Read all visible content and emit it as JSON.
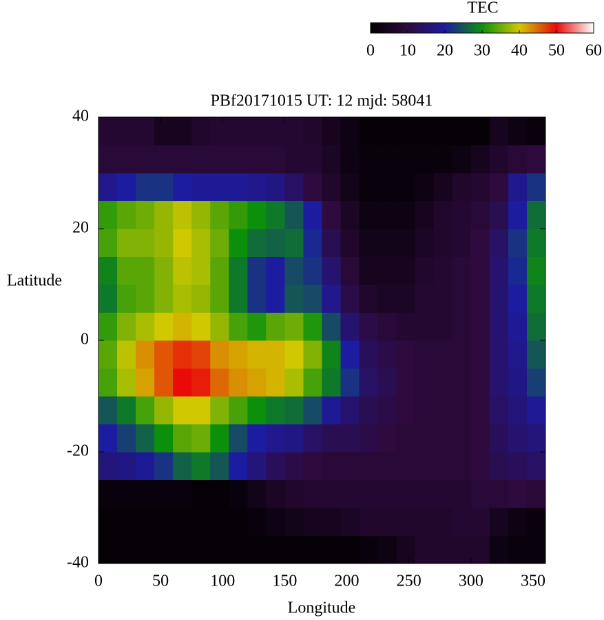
{
  "chart_data": {
    "type": "heatmap",
    "title": "PBf20171015  UT: 12  mjd: 58041",
    "xlabel": "Longitude",
    "ylabel": "Latitude",
    "colorbar_title": "TEC",
    "xlim": [
      0,
      360
    ],
    "xticks": [
      0,
      50,
      100,
      150,
      200,
      250,
      300,
      350
    ],
    "ylim": [
      -40,
      40
    ],
    "yticks": [
      -40,
      -20,
      0,
      20,
      40
    ],
    "zlim": [
      0,
      60
    ],
    "zticks": [
      0,
      10,
      20,
      30,
      40,
      50,
      60
    ],
    "colormap": [
      "#000000",
      "#2e0a3e",
      "#1c1ca0",
      "#0c900c",
      "#d0c800",
      "#ea0a0a",
      "#ffffff"
    ],
    "x": [
      7.5,
      22.5,
      37.5,
      52.5,
      67.5,
      82.5,
      97.5,
      112.5,
      127.5,
      142.5,
      157.5,
      172.5,
      187.5,
      202.5,
      217.5,
      232.5,
      247.5,
      262.5,
      277.5,
      292.5,
      307.5,
      322.5,
      337.5,
      352.5
    ],
    "y": [
      -37.5,
      -32.5,
      -27.5,
      -22.5,
      -17.5,
      -12.5,
      -7.5,
      -2.5,
      2.5,
      7.5,
      12.5,
      17.5,
      22.5,
      27.5,
      32.5,
      37.5
    ],
    "z": [
      [
        1,
        1,
        1,
        1,
        1,
        1,
        1,
        1,
        1,
        1,
        1,
        1,
        1,
        1,
        2,
        3,
        5,
        7,
        7,
        7,
        7,
        3,
        2,
        2
      ],
      [
        1,
        1,
        1,
        1,
        1,
        1,
        1,
        1,
        2,
        3,
        4,
        5,
        5,
        6,
        7,
        7,
        7,
        7,
        7,
        8,
        8,
        5,
        3,
        2
      ],
      [
        2,
        2,
        2,
        2,
        2,
        1,
        1,
        2,
        4,
        6,
        7,
        8,
        8,
        8,
        8,
        8,
        8,
        8,
        8,
        8,
        9,
        9,
        10,
        9
      ],
      [
        16,
        17,
        19,
        22,
        26,
        28,
        25,
        20,
        16,
        13,
        11,
        10,
        9,
        9,
        9,
        9,
        9,
        9,
        9,
        9,
        10,
        12,
        13,
        14
      ],
      [
        20,
        23,
        26,
        30,
        34,
        35,
        30,
        24,
        20,
        18,
        17,
        14,
        12,
        12,
        11,
        10,
        9,
        9,
        9,
        9,
        10,
        13,
        15,
        16
      ],
      [
        25,
        28,
        33,
        37,
        40,
        40,
        36,
        33,
        30,
        28,
        27,
        24,
        19,
        15,
        12,
        11,
        10,
        9,
        9,
        9,
        10,
        14,
        16,
        19
      ],
      [
        33,
        38,
        42,
        46,
        50,
        49,
        45,
        43,
        42,
        41,
        38,
        33,
        28,
        22,
        14,
        12,
        10,
        9,
        9,
        9,
        10,
        15,
        17,
        23
      ],
      [
        34,
        39,
        43,
        46,
        48,
        47,
        43,
        42,
        41,
        41,
        40,
        36,
        29,
        20,
        13,
        11,
        10,
        9,
        9,
        9,
        10,
        15,
        18,
        25
      ],
      [
        32,
        36,
        38,
        40,
        41,
        40,
        37,
        33,
        31,
        34,
        35,
        31,
        24,
        15,
        11,
        9,
        8,
        8,
        8,
        9,
        10,
        15,
        19,
        27
      ],
      [
        28,
        33,
        34,
        36,
        38,
        37,
        34,
        28,
        22,
        20,
        25,
        24,
        18,
        11,
        7,
        6,
        6,
        8,
        8,
        9,
        10,
        15,
        20,
        28
      ],
      [
        29,
        34,
        34,
        36,
        39,
        38,
        34,
        28,
        22,
        20,
        24,
        22,
        15,
        9,
        5,
        5,
        5,
        7,
        8,
        9,
        10,
        15,
        21,
        29
      ],
      [
        33,
        36,
        36,
        37,
        40,
        38,
        35,
        30,
        27,
        26,
        27,
        21,
        12,
        7,
        4,
        4,
        4,
        6,
        7,
        8,
        10,
        14,
        22,
        28
      ],
      [
        32,
        34,
        35,
        37,
        39,
        37,
        34,
        32,
        30,
        28,
        25,
        20,
        10,
        6,
        3,
        3,
        3,
        5,
        7,
        8,
        9,
        12,
        20,
        27
      ],
      [
        18,
        20,
        22,
        22,
        20,
        19,
        19,
        19,
        18,
        17,
        14,
        10,
        7,
        4,
        2,
        2,
        2,
        3,
        5,
        7,
        8,
        10,
        18,
        22
      ],
      [
        9,
        9,
        9,
        9,
        9,
        9,
        9,
        9,
        9,
        9,
        8,
        8,
        6,
        3,
        2,
        2,
        2,
        2,
        2,
        3,
        5,
        7,
        9,
        10
      ],
      [
        8,
        8,
        8,
        5,
        5,
        7,
        8,
        8,
        8,
        8,
        8,
        7,
        5,
        3,
        1,
        1,
        1,
        1,
        1,
        1,
        1,
        5,
        3,
        2
      ]
    ]
  }
}
